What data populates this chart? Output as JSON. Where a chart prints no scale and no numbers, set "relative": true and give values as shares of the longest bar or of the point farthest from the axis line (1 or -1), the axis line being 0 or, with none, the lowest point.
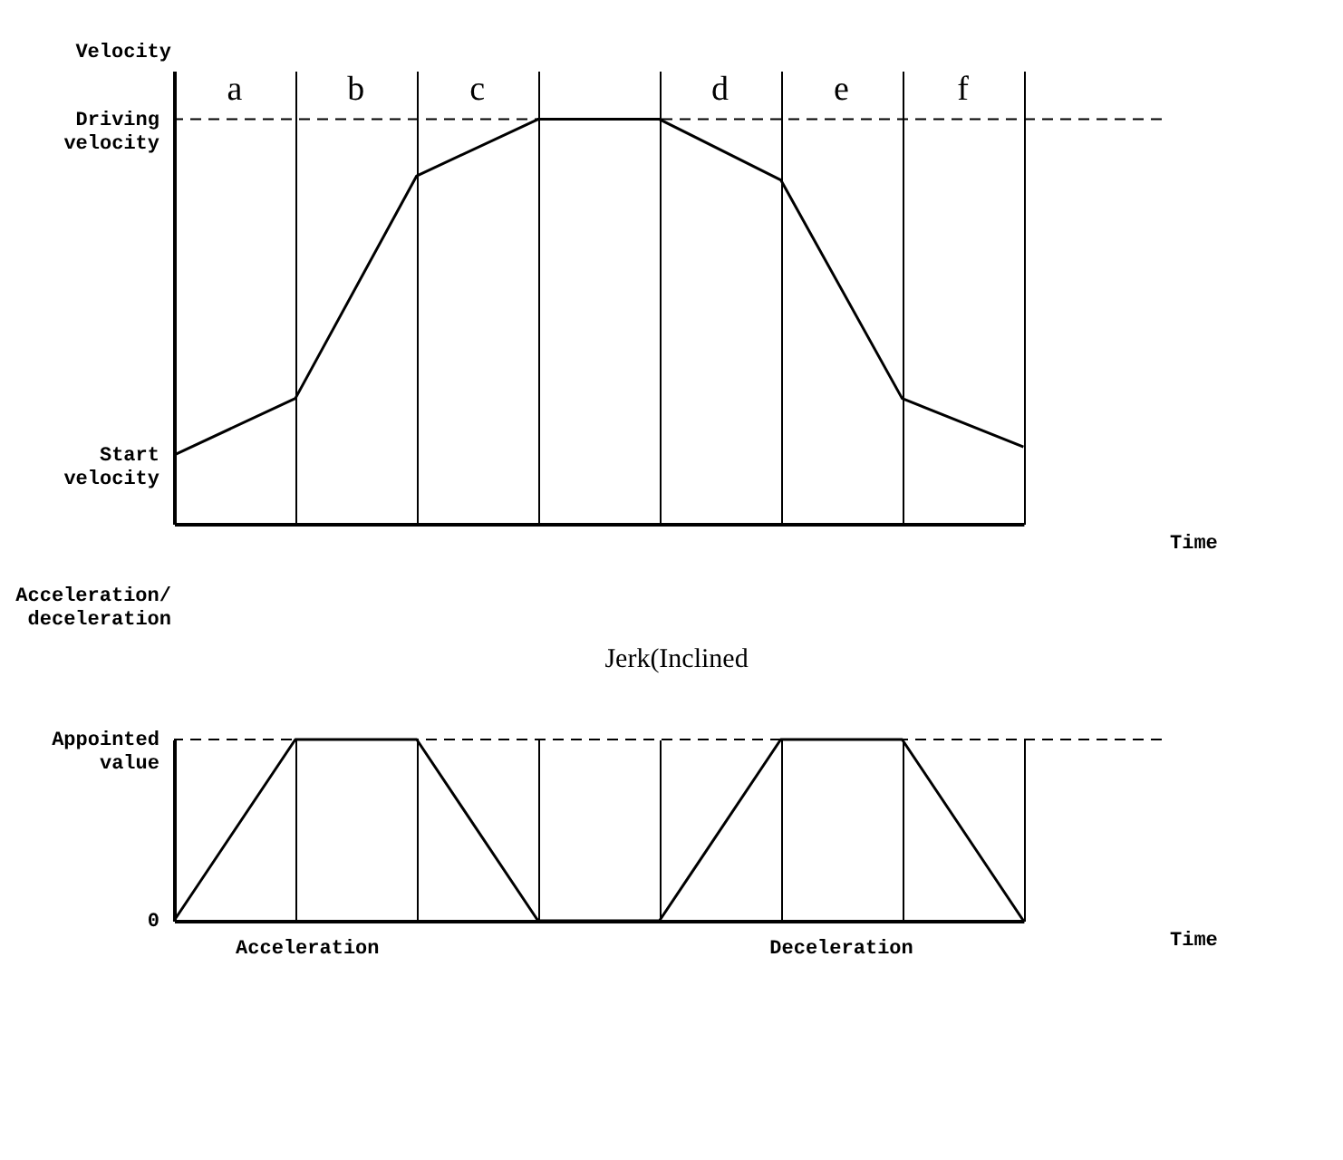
{
  "chart_data": [
    {
      "type": "line",
      "ylabel": "Velocity",
      "xlabel": "Time",
      "relative": true,
      "categories": [
        null,
        null,
        null,
        null,
        null,
        null,
        null,
        null
      ],
      "series": [
        {
          "color": "#000000",
          "values": [
            0.17,
            0.31,
            0.86,
            1.0,
            1.0,
            0.85,
            0.31,
            0.19
          ]
        }
      ],
      "grid": "x",
      "marker": "none",
      "line_style": "solid",
      "ref_lines": [
        {
          "axis": "y",
          "value": 1,
          "label": "Driving velocity",
          "line_style": "dashed",
          "color": "#000000"
        }
      ],
      "annotations": [
        "Start velocity",
        "a",
        "b",
        "c",
        "d",
        "e",
        "f"
      ]
    },
    {
      "type": "line",
      "ylabel": "Acceleration/ deceleration",
      "xlabel": "Time",
      "relative": true,
      "categories": [
        null,
        null,
        null,
        null,
        null,
        null,
        null,
        null
      ],
      "series": [
        {
          "color": "#000000",
          "values": [
            0,
            1,
            1,
            0,
            0,
            1,
            1,
            0
          ]
        }
      ],
      "grid": "x",
      "marker": "none",
      "line_style": "solid",
      "ref_lines": [
        {
          "axis": "y",
          "value": 1,
          "label": "Appointed value",
          "line_style": "dashed",
          "color": "#000000"
        }
      ],
      "annotations": [
        "0",
        "Jerk(Inclined",
        "Acceleration",
        "Deceleration"
      ]
    }
  ]
}
